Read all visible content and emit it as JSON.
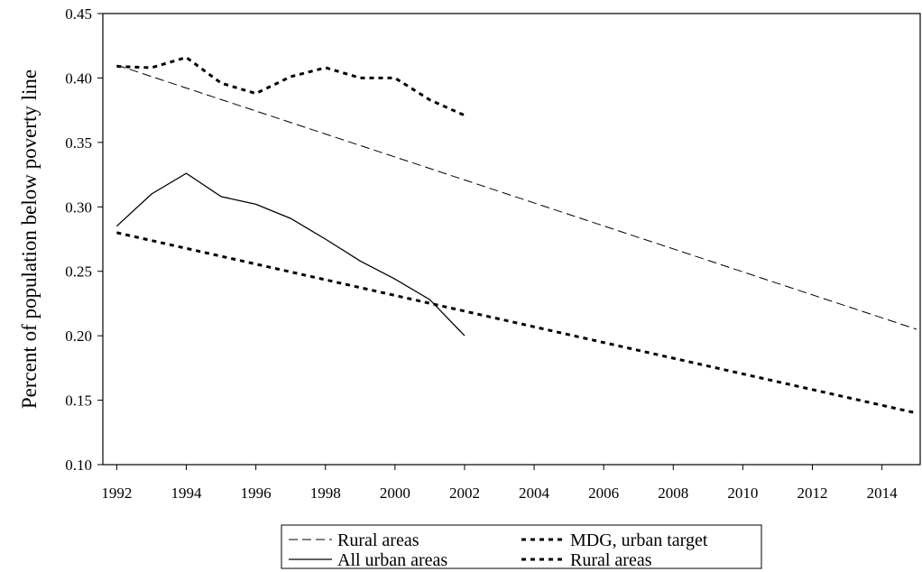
{
  "chart_data": {
    "type": "line",
    "title": "",
    "xlabel": "",
    "ylabel": "Percent of population below poverty line",
    "xlim": [
      1991.6,
      2015.1
    ],
    "ylim": [
      0.1,
      0.45
    ],
    "x_ticks": [
      1992,
      1994,
      1996,
      1998,
      2000,
      2002,
      2004,
      2006,
      2008,
      2010,
      2012,
      2014
    ],
    "x_tick_labels": [
      "1992",
      "1994",
      "1996",
      "1998",
      "2000",
      "2002",
      "2004",
      "2006",
      "2008",
      "2010",
      "2012",
      "2014"
    ],
    "y_ticks": [
      0.1,
      0.15,
      0.2,
      0.25,
      0.3,
      0.35,
      0.4,
      0.45
    ],
    "y_tick_labels": [
      "0.10",
      "0.15",
      "0.20",
      "0.25",
      "0.30",
      "0.35",
      "0.40",
      "0.45"
    ],
    "grid": false,
    "legend_position": "bottom",
    "series": [
      {
        "name": "Rural areas",
        "style": "dashed-thin",
        "x": [
          1992,
          2015
        ],
        "y": [
          0.41,
          0.205
        ]
      },
      {
        "name": "All urban areas",
        "style": "solid",
        "x": [
          1992,
          1993,
          1994,
          1995,
          1996,
          1997,
          1998,
          1999,
          2000,
          2001,
          2002
        ],
        "y": [
          0.285,
          0.31,
          0.326,
          0.308,
          0.302,
          0.291,
          0.275,
          0.258,
          0.244,
          0.228,
          0.2
        ]
      },
      {
        "name": "MDG, urban target",
        "style": "dotted-bold",
        "x": [
          1992,
          2015
        ],
        "y": [
          0.28,
          0.14
        ]
      },
      {
        "name": "Rural areas",
        "style": "dotted-bold",
        "x": [
          1992,
          1993,
          1994,
          1995,
          1996,
          1997,
          1998,
          1999,
          2000,
          2001,
          2002
        ],
        "y": [
          0.409,
          0.408,
          0.416,
          0.396,
          0.388,
          0.401,
          0.408,
          0.4,
          0.4,
          0.383,
          0.371
        ]
      }
    ]
  }
}
